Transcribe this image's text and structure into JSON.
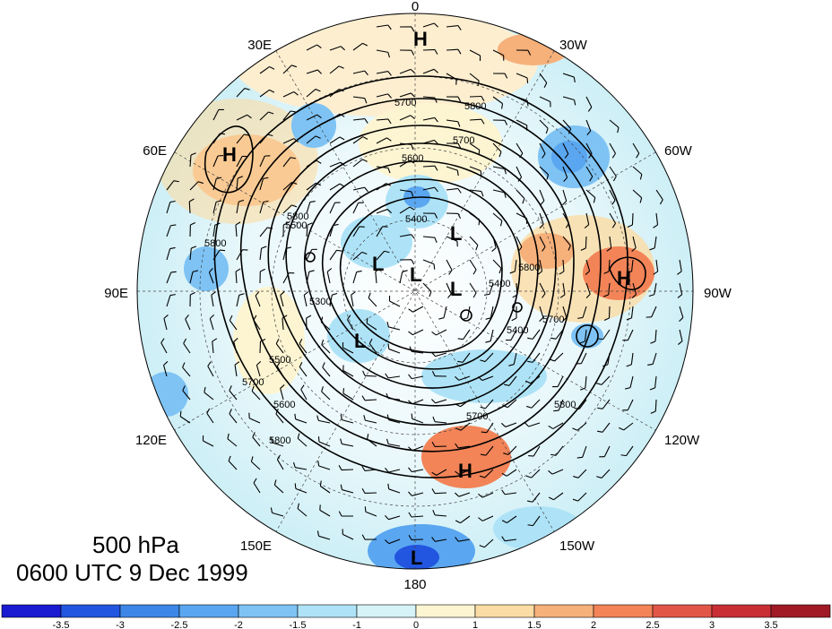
{
  "title": {
    "level": "500 hPa",
    "time": "0600 UTC 9 Dec 1999"
  },
  "longitude_labels": {
    "top": "0",
    "bottom": "180",
    "left": "90E",
    "right": "90W",
    "upper_left": "30E",
    "upper_right": "30W",
    "left_upper": "60E",
    "right_upper": "60W",
    "left_lower": "120E",
    "right_lower": "120W",
    "lower_left": "150E",
    "lower_right": "150W"
  },
  "contour_labels": [
    "5700",
    "5800",
    "5700",
    "5800",
    "5600",
    "5500",
    "5800",
    "5800",
    "5300",
    "5400",
    "5500",
    "5400",
    "5700",
    "5700",
    "5600",
    "5800",
    "5400",
    "5700",
    "5800"
  ],
  "pressure_centers": [
    "H",
    "H",
    "H",
    "H",
    "L",
    "L",
    "L",
    "L",
    "L",
    "L"
  ],
  "colorbar": {
    "ticks": [
      "-3.5",
      "-3",
      "-2.5",
      "-2",
      "-1.5",
      "-1",
      "0",
      "1",
      "1.5",
      "2",
      "2.5",
      "3",
      "3.5"
    ],
    "colors": [
      "#1a1ad0",
      "#2255e0",
      "#3d86e8",
      "#5aa6f0",
      "#7ec3f4",
      "#aee3f7",
      "#d6f3f8",
      "#fdf5d2",
      "#fbdca4",
      "#f6b07a",
      "#f28458",
      "#e25648",
      "#c92e35",
      "#a01a25"
    ]
  }
}
